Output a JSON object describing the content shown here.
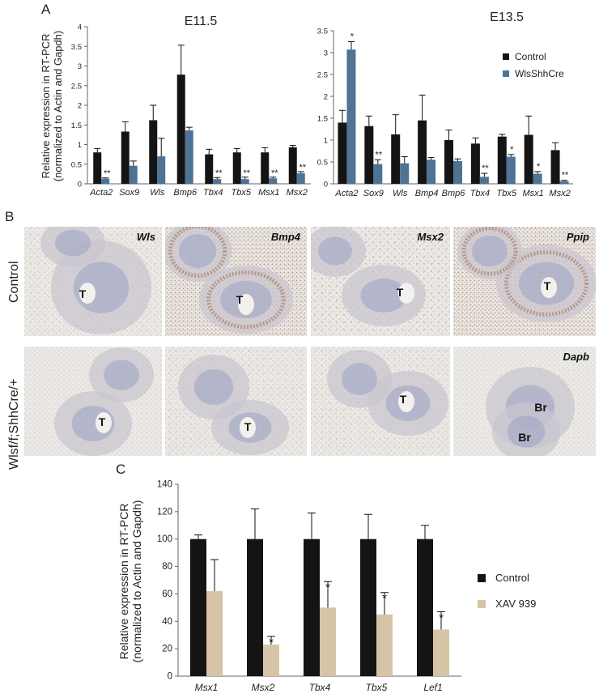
{
  "panels": {
    "a": {
      "letter": "A"
    },
    "b": {
      "letter": "B",
      "rows": [
        "Control",
        "Wlsf/f;ShhCre/+"
      ]
    },
    "c": {
      "letter": "C"
    }
  },
  "micro": {
    "tiles": [
      {
        "row": 0,
        "col": 0,
        "gene": "Wls",
        "marks": [
          "T"
        ],
        "stain": "light"
      },
      {
        "row": 0,
        "col": 1,
        "gene": "Bmp4",
        "marks": [
          "T"
        ],
        "stain": "heavy"
      },
      {
        "row": 0,
        "col": 2,
        "gene": "Msx2",
        "marks": [
          "T"
        ],
        "stain": "medium"
      },
      {
        "row": 0,
        "col": 3,
        "gene": "Ppip",
        "marks": [
          "T"
        ],
        "stain": "heavy"
      },
      {
        "row": 1,
        "col": 0,
        "gene": "",
        "marks": [
          "T"
        ],
        "stain": "none"
      },
      {
        "row": 1,
        "col": 1,
        "gene": "",
        "marks": [
          "T"
        ],
        "stain": "light"
      },
      {
        "row": 1,
        "col": 2,
        "gene": "",
        "marks": [
          "T"
        ],
        "stain": "light"
      },
      {
        "row": 1,
        "col": 3,
        "gene": "Dapb",
        "marks": [
          "Br",
          "Br"
        ],
        "stain": "none"
      }
    ],
    "colors": {
      "tissue": "#c9c6cf",
      "background": "#ebe9e6",
      "stain": "#9a5a2e",
      "epithelium": "#9aa3c4"
    }
  },
  "chart_data": [
    {
      "id": "A-left",
      "type": "bar",
      "title": "E11.5",
      "ylabel": "Relative expression in RT-PCR (normalized to Actin and Gapdh)",
      "ylim": [
        0,
        4
      ],
      "yticks": [
        "0",
        "0.5",
        "1",
        "1.5",
        "2",
        "2.5",
        "3",
        "3.5",
        "4"
      ],
      "categories": [
        "Acta2",
        "Sox9",
        "Wls",
        "Bmp6",
        "Tbx4",
        "Tbx5",
        "Msx1",
        "Msx2"
      ],
      "series": [
        {
          "name": "Control",
          "color": "#141414",
          "values": [
            0.8,
            1.33,
            1.62,
            2.78,
            0.75,
            0.8,
            0.8,
            0.93
          ],
          "errors": [
            0.1,
            0.25,
            0.38,
            0.75,
            0.13,
            0.1,
            0.12,
            0.05
          ]
        },
        {
          "name": "WlsShhCre",
          "color": "#4f7394",
          "values": [
            0.13,
            0.46,
            0.7,
            1.36,
            0.12,
            0.12,
            0.14,
            0.27
          ],
          "errors": [
            0.02,
            0.12,
            0.46,
            0.08,
            0.04,
            0.05,
            0.03,
            0.04
          ]
        }
      ],
      "sig": [
        "**",
        "",
        "",
        "",
        "**",
        "**",
        "**",
        "**"
      ]
    },
    {
      "id": "A-right",
      "type": "bar",
      "title": "E13.5",
      "ylim": [
        0,
        3.5
      ],
      "yticks": [
        "0",
        "0.5",
        "1",
        "1.5",
        "2",
        "2.5",
        "3",
        "3.5"
      ],
      "categories": [
        "Acta2",
        "Sox9",
        "Wls",
        "Bmp4",
        "Bmp6",
        "Tbx4",
        "Tbx5",
        "Msx1",
        "Msx2"
      ],
      "legend": [
        "Control",
        "WlsShhCre"
      ],
      "legend_position": "top-right",
      "series": [
        {
          "name": "Control",
          "color": "#141414",
          "values": [
            1.4,
            1.32,
            1.13,
            1.45,
            1.0,
            0.92,
            1.08,
            1.12,
            0.77
          ],
          "errors": [
            0.28,
            0.23,
            0.45,
            0.58,
            0.23,
            0.13,
            0.05,
            0.43,
            0.17
          ]
        },
        {
          "name": "WlsShhCre",
          "color": "#4f7394",
          "values": [
            3.07,
            0.45,
            0.47,
            0.55,
            0.52,
            0.16,
            0.62,
            0.23,
            0.06
          ]
        },
        {
          "name": "WlsShhCre_err",
          "values": [
            0.18,
            0.1,
            0.15,
            0.05,
            0.05,
            0.08,
            0.05,
            0.05,
            0.02
          ]
        }
      ],
      "sig": [
        "*",
        "**",
        "",
        "",
        "",
        "**",
        "*",
        "*",
        "**"
      ]
    },
    {
      "id": "C",
      "type": "bar",
      "ylabel": "Relative expression in RT-PCR (normalized to Actin and Gapdh)",
      "ylim": [
        0,
        140
      ],
      "yticks": [
        "0",
        "20",
        "40",
        "60",
        "80",
        "100",
        "120",
        "140"
      ],
      "categories": [
        "Msx1",
        "Msx2",
        "Tbx4",
        "Tbx5",
        "Lef1"
      ],
      "legend": [
        "Control",
        "XAV 939"
      ],
      "legend_position": "right",
      "series": [
        {
          "name": "Control",
          "color": "#141414",
          "values": [
            100,
            100,
            100,
            100,
            100
          ],
          "errors": [
            3,
            22,
            19,
            18,
            10
          ]
        },
        {
          "name": "XAV 939",
          "color": "#d6c4a6",
          "values": [
            62,
            23,
            50,
            45,
            34
          ],
          "errors": [
            23,
            6,
            19,
            16,
            13
          ]
        }
      ],
      "sig": [
        "",
        "*",
        "*",
        "*",
        "*"
      ]
    }
  ]
}
